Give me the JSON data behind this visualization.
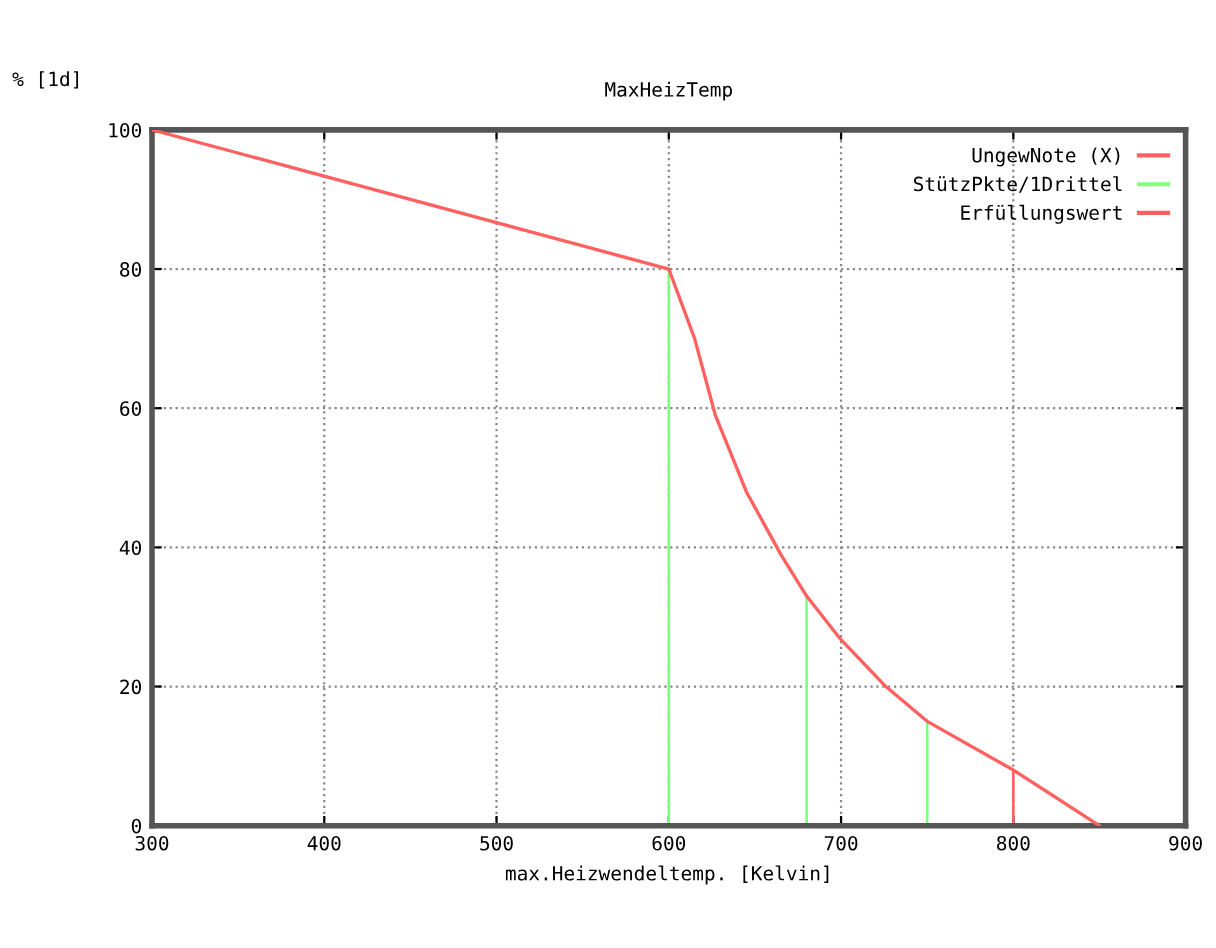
{
  "chart_data": {
    "type": "line",
    "title": "MaxHeizTemp",
    "xlabel": "max.Heizwendeltemp. [Kelvin]",
    "ylabel": "% [1d]",
    "xlim": [
      300,
      900
    ],
    "xticks": [
      300,
      400,
      500,
      600,
      700,
      800,
      900
    ],
    "ylim": [
      0,
      100
    ],
    "yticks": [
      0,
      20,
      40,
      60,
      80,
      100
    ],
    "grid": true,
    "legend": "top right",
    "marker": "none",
    "line_style": "solid",
    "series": [
      {
        "name": "UngewNote (X)",
        "color": "#ff6060",
        "x": [
          300,
          600,
          615,
          627,
          645,
          665,
          680,
          699,
          726,
          750,
          800,
          850
        ],
        "values": [
          100,
          80,
          70,
          59,
          48,
          39,
          33,
          27,
          20,
          15,
          8,
          0
        ]
      },
      {
        "name": "StützPkte/1Drittel",
        "color": "#80ff80",
        "type": "bar",
        "x": [
          600,
          680,
          750
        ],
        "values": [
          80,
          33,
          15
        ]
      },
      {
        "name": "Erfüllungswert",
        "color": "#ff6060",
        "type": "bar",
        "x": [
          800
        ],
        "values": [
          8
        ]
      }
    ]
  }
}
